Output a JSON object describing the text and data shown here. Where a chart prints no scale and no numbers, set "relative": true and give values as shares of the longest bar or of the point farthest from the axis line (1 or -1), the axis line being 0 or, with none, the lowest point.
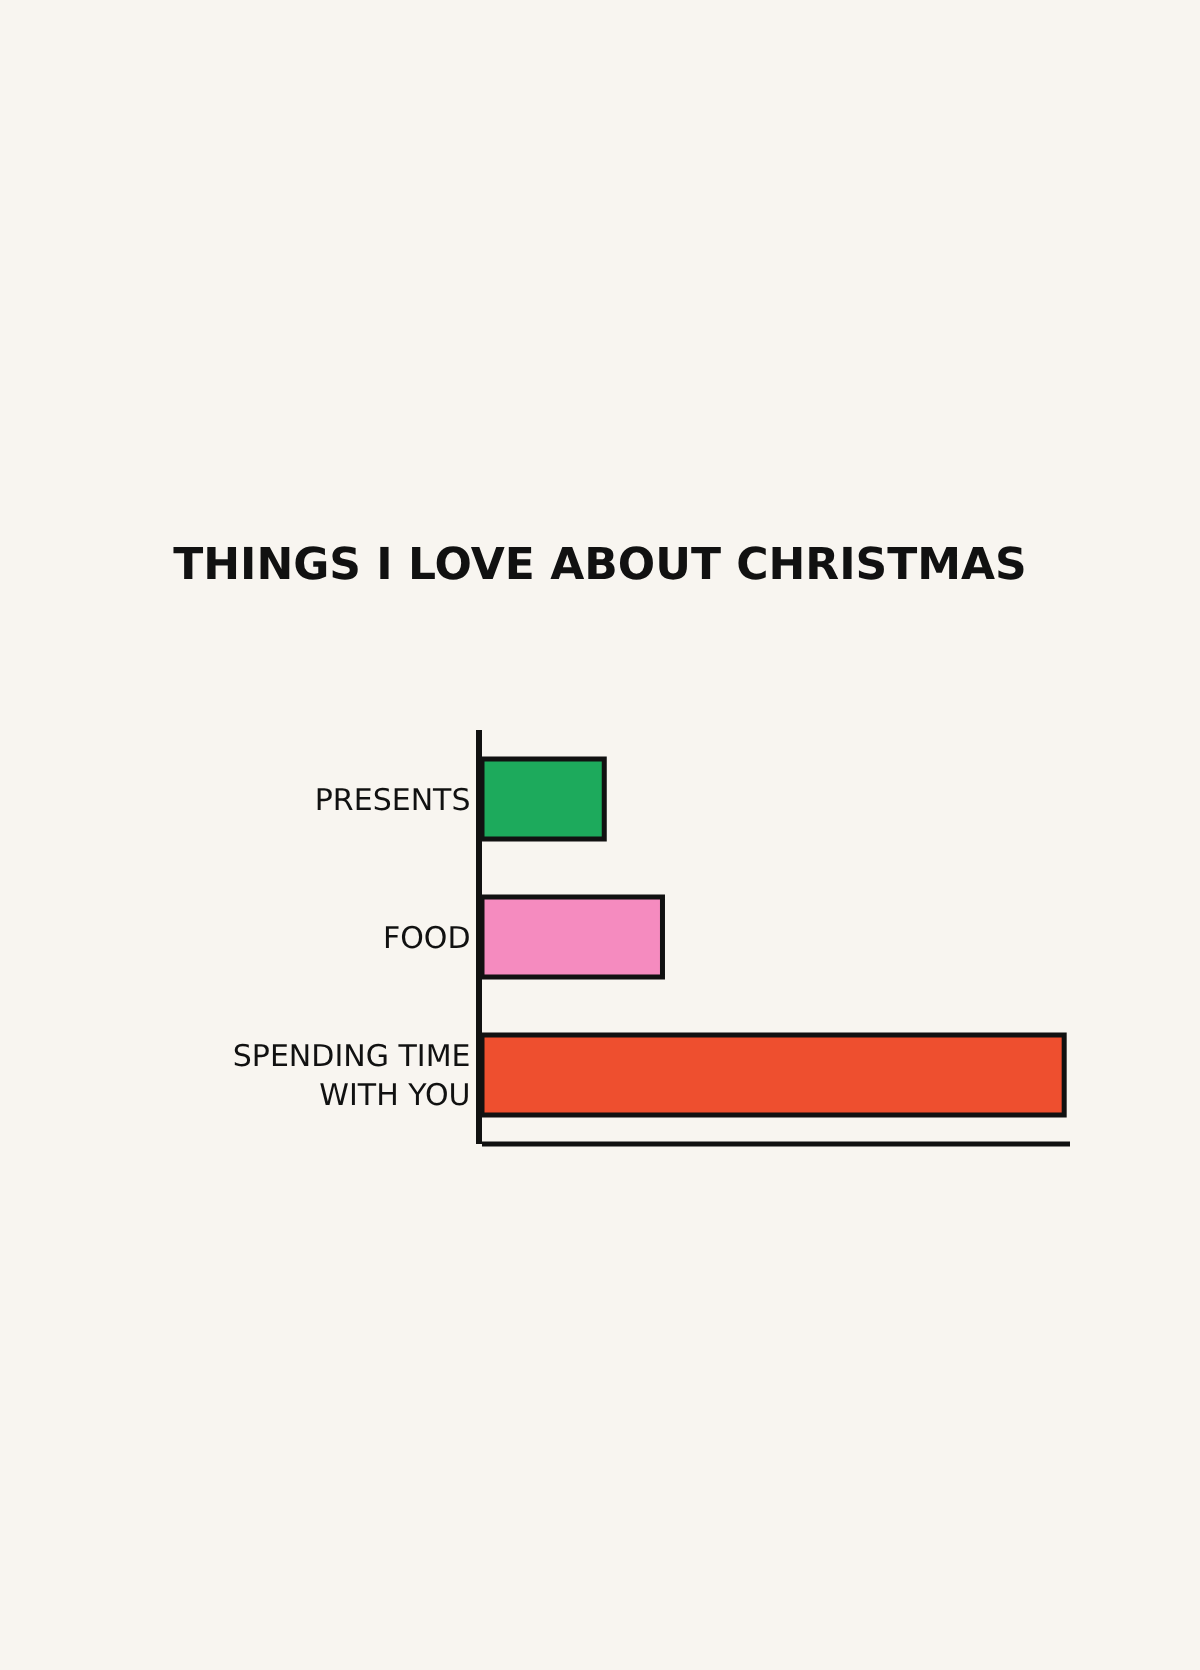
{
  "chart_data": {
    "type": "bar",
    "orientation": "horizontal",
    "relative": true,
    "title": "THINGS I LOVE ABOUT CHRISTMAS",
    "categories": [
      "PRESENTS",
      "FOOD",
      "SPENDING TIME WITH YOU"
    ],
    "values": [
      0.21,
      0.31,
      1
    ],
    "colors": [
      "#1daa5c",
      "#f58bbf",
      "#ee4f2f"
    ],
    "grid": false,
    "legend": false
  }
}
